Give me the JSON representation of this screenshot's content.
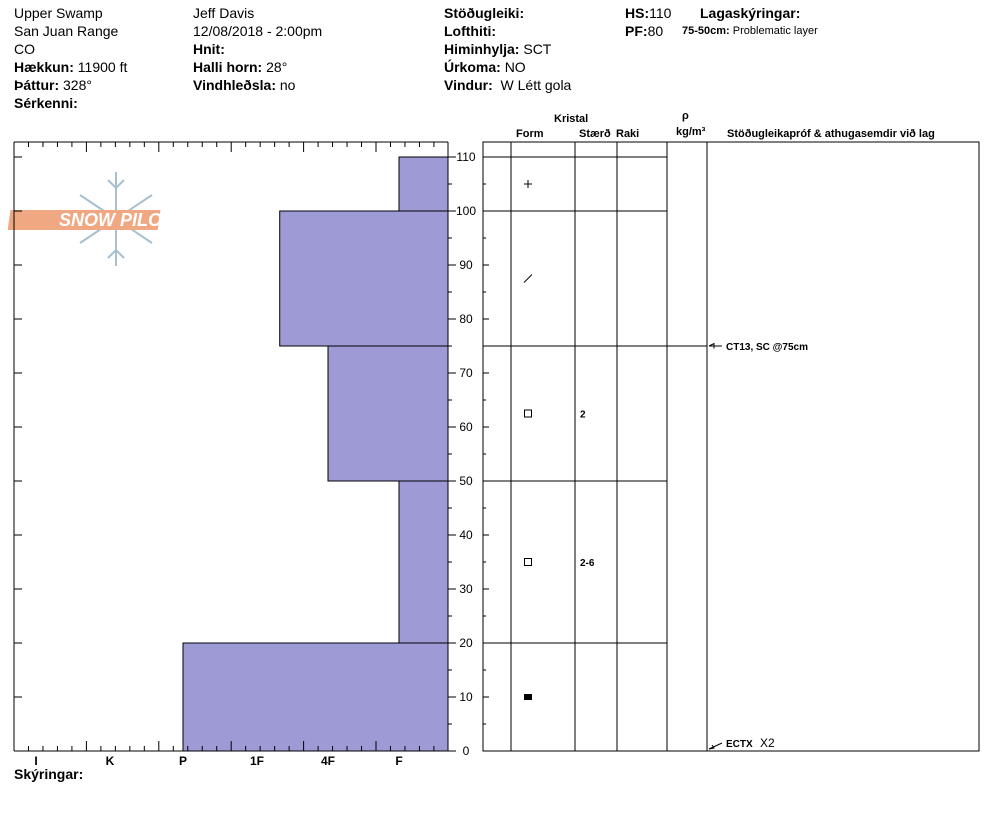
{
  "header": {
    "location": "Upper Swamp",
    "range": "San Juan Range",
    "state": "CO",
    "elevation_label": "Hækkun:",
    "elevation_value": "11900 ft",
    "aspect_label": "Þáttur:",
    "aspect_value": "328°",
    "features_label": "Sérkenni:",
    "observer": "Jeff Davis",
    "datetime": "12/08/2018 - 2:00pm",
    "coords_label": "Hnit:",
    "slope_label": "Halli horn:",
    "slope_value": "28°",
    "wind_loading_label": "Vindhleðsla:",
    "wind_loading_value": "no",
    "stability_label": "Stöðugleiki:",
    "air_temp_label": "Lofthiti:",
    "sky_label": "Himinhylja:",
    "sky_value": "SCT",
    "precip_label": "Úrkoma:",
    "precip_value": "NO",
    "wind_label": "Vindur:",
    "wind_value": "W Létt gola",
    "hs_label": "HS:",
    "hs_value": "110",
    "pf_label": "PF:",
    "pf_value": "80",
    "legend_label": "Lagaskýringar:",
    "legend_range": "75-50cm:",
    "legend_text": "Problematic layer"
  },
  "columns": {
    "crystal": "Kristal",
    "form": "Form",
    "size": "Stærð",
    "moisture": "Raki",
    "rho": "ρ",
    "density_unit": "kg/m³",
    "tests": "Stöðugleikapróf & athugasemdir við lag"
  },
  "footer": {
    "notes_label": "Skýringar:"
  },
  "logo_text": "SNOW PILOT",
  "colors": {
    "hardness_fill": "#9d9ad6",
    "logo_orange": "#f0a882",
    "logo_blue": "#a8bfd0"
  },
  "chart_data": {
    "type": "bar",
    "orientation": "horizontal",
    "y_unit": "cm",
    "ylim": [
      0,
      110
    ],
    "y_ticks": [
      0,
      10,
      20,
      30,
      40,
      50,
      60,
      70,
      80,
      90,
      100,
      110
    ],
    "hardness_scale": [
      "I",
      "K",
      "P",
      "1F",
      "4F",
      "F"
    ],
    "layers": [
      {
        "top": 110,
        "bottom": 100,
        "hardness": "F",
        "form": "+",
        "form_icon": "precipitation-particles-icon",
        "size": ""
      },
      {
        "top": 100,
        "bottom": 75,
        "hardness": "1F-4F",
        "hardness_value": 3.32,
        "form": "/",
        "form_icon": "decomposing-fragments-icon",
        "size": ""
      },
      {
        "top": 75,
        "bottom": 50,
        "hardness": "4F",
        "form": "□",
        "form_icon": "faceted-crystals-icon",
        "size": "2"
      },
      {
        "top": 50,
        "bottom": 20,
        "hardness": "F",
        "form": "□",
        "form_icon": "faceted-crystals-icon",
        "size": "2-6"
      },
      {
        "top": 20,
        "bottom": 0,
        "hardness": "P",
        "form": "■",
        "form_icon": "melt-freeze-crust-icon",
        "size": ""
      }
    ],
    "tests": [
      {
        "depth": 75,
        "label": "CT13, SC @75cm"
      },
      {
        "depth": 0,
        "label": "ECTX",
        "suffix": "X2"
      }
    ]
  }
}
